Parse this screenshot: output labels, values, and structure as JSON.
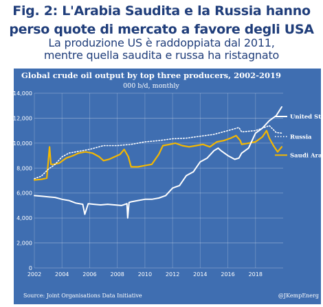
{
  "header": {
    "title_line1": "Fig. 2: L'Arabia Saudita e la Russia hanno",
    "title_line2": "perso quote di mercato a favore degli USA",
    "subtitle_line1": "La produzione US è raddoppiata dal 2011,",
    "subtitle_line2": "mentre quella saudita e russa ha ristagnato"
  },
  "colors": {
    "panel_background": "#3f6eb1",
    "header_text": "#1f3d7a",
    "united_states": "#ffffff",
    "russia": "#ffffff",
    "saudi_arabia": "#f5b800"
  },
  "chart_data": {
    "type": "line",
    "title": "Global crude oil output by top three producers, 2002-2019",
    "subtitle": "000 b/d, monthly",
    "ylim": [
      0,
      14000
    ],
    "xlim": [
      2002,
      2020
    ],
    "y_ticks": [
      "0",
      "2,000",
      "4,000",
      "6,000",
      "8,000",
      "10,000",
      "12,000",
      "14,000"
    ],
    "x_ticks": [
      "2002",
      "2004",
      "2006",
      "2008",
      "2010",
      "2012",
      "2014",
      "2016",
      "2018"
    ],
    "grid": true,
    "legend_position": "right",
    "source": "Source: Joint Organisations Data Initiative",
    "credit": "@JKempEnerg",
    "series": [
      {
        "name": "United Stat",
        "style": "solid",
        "x": [
          2002.0,
          2002.5,
          2003.0,
          2003.5,
          2004.0,
          2004.5,
          2005.0,
          2005.5,
          2005.65,
          2005.9,
          2006.3,
          2006.8,
          2007.3,
          2007.8,
          2008.3,
          2008.7,
          2008.75,
          2008.85,
          2009.0,
          2009.5,
          2010.0,
          2010.5,
          2011.0,
          2011.5,
          2012.0,
          2012.5,
          2013.0,
          2013.5,
          2014.0,
          2014.5,
          2015.0,
          2015.3,
          2015.5,
          2016.0,
          2016.5,
          2016.8,
          2017.0,
          2017.5,
          2018.0,
          2018.5,
          2019.0,
          2019.5,
          2019.9
        ],
        "y": [
          5800,
          5750,
          5700,
          5650,
          5500,
          5400,
          5200,
          5100,
          4300,
          5150,
          5100,
          5050,
          5100,
          5050,
          5000,
          5150,
          4000,
          5250,
          5300,
          5400,
          5500,
          5500,
          5600,
          5800,
          6400,
          6600,
          7400,
          7700,
          8500,
          8800,
          9400,
          9600,
          9400,
          9000,
          8700,
          8800,
          9200,
          9600,
          10800,
          11200,
          11800,
          12200,
          12900
        ]
      },
      {
        "name": "Russia",
        "style": "dotted",
        "x": [
          2002.0,
          2002.5,
          2003.0,
          2003.5,
          2004.0,
          2004.5,
          2005.0,
          2006.0,
          2007.0,
          2008.0,
          2009.0,
          2010.0,
          2011.0,
          2012.0,
          2013.0,
          2014.0,
          2015.0,
          2016.0,
          2016.8,
          2017.0,
          2018.0,
          2018.5,
          2019.0,
          2019.5,
          2019.9
        ],
        "y": [
          7150,
          7350,
          7900,
          8300,
          8900,
          9200,
          9300,
          9500,
          9800,
          9800,
          9900,
          10100,
          10200,
          10350,
          10400,
          10550,
          10700,
          11000,
          11250,
          10900,
          11000,
          11200,
          11400,
          10850,
          10800
        ]
      },
      {
        "name": "Saudi Arab",
        "style": "solid",
        "x": [
          2002.0,
          2002.5,
          2002.9,
          2003.1,
          2003.2,
          2003.4,
          2003.8,
          2004.3,
          2004.8,
          2005.2,
          2005.7,
          2006.2,
          2006.7,
          2007.0,
          2007.4,
          2007.8,
          2008.2,
          2008.5,
          2008.8,
          2009.0,
          2009.5,
          2010.0,
          2010.5,
          2011.0,
          2011.3,
          2011.8,
          2012.2,
          2012.7,
          2013.2,
          2013.7,
          2014.2,
          2014.7,
          2015.2,
          2015.7,
          2016.2,
          2016.6,
          2016.9,
          2017.0,
          2017.5,
          2018.0,
          2018.5,
          2018.8,
          2019.0,
          2019.3,
          2019.6,
          2019.9
        ],
        "y": [
          7050,
          7100,
          7200,
          9700,
          8300,
          8300,
          8400,
          8800,
          9000,
          9200,
          9300,
          9200,
          8900,
          8600,
          8700,
          8900,
          9100,
          9500,
          8900,
          8100,
          8100,
          8200,
          8300,
          9100,
          9800,
          9900,
          10000,
          9800,
          9700,
          9800,
          9900,
          9700,
          10100,
          10200,
          10400,
          10600,
          10200,
          9900,
          10000,
          10100,
          10500,
          11000,
          10400,
          9800,
          9300,
          9700
        ]
      }
    ]
  }
}
